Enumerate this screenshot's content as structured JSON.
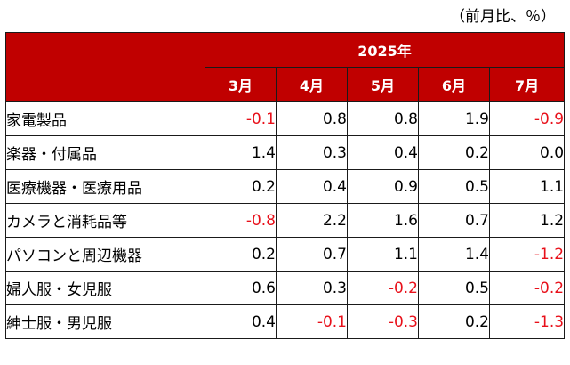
{
  "unit_note": "（前月比、％）",
  "year_label": "2025年",
  "months": [
    "3月",
    "4月",
    "5月",
    "6月",
    "7月"
  ],
  "rows": [
    {
      "label": "家電製品",
      "values": [
        "-0.1",
        "0.8",
        "0.8",
        "1.9",
        "-0.9"
      ]
    },
    {
      "label": "楽器・付属品",
      "values": [
        "1.4",
        "0.3",
        "0.4",
        "0.2",
        "0.0"
      ]
    },
    {
      "label": "医療機器・医療用品",
      "values": [
        "0.2",
        "0.4",
        "0.9",
        "0.5",
        "1.1"
      ]
    },
    {
      "label": "カメラと消耗品等",
      "values": [
        "-0.8",
        "2.2",
        "1.6",
        "0.7",
        "1.2"
      ]
    },
    {
      "label": "パソコンと周辺機器",
      "values": [
        "0.2",
        "0.7",
        "1.1",
        "1.4",
        "-1.2"
      ]
    },
    {
      "label": "婦人服・女児服",
      "values": [
        "0.6",
        "0.3",
        "-0.2",
        "0.5",
        "-0.2"
      ]
    },
    {
      "label": "紳士服・男児服",
      "values": [
        "0.4",
        "-0.1",
        "-0.3",
        "0.2",
        "-1.3"
      ]
    }
  ],
  "colors": {
    "header_bg": "#c00000",
    "negative_text": "#e8101a"
  }
}
